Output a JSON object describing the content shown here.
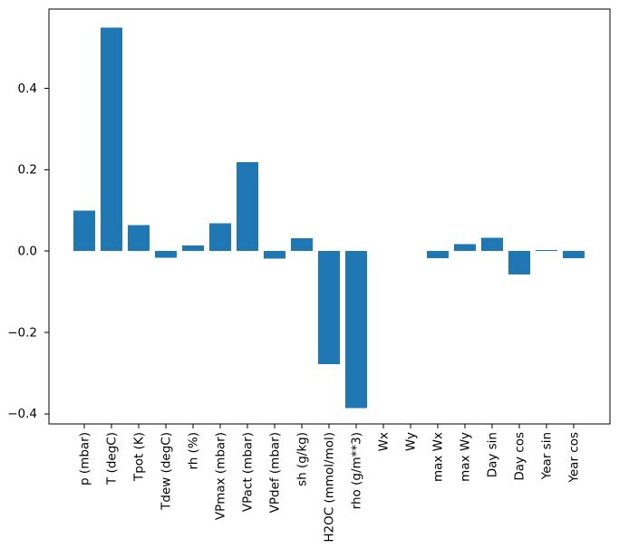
{
  "chart_data": {
    "type": "bar",
    "title": "",
    "xlabel": "",
    "ylabel": "",
    "categories": [
      "p (mbar)",
      "T (degC)",
      "Tpot (K)",
      "Tdew (degC)",
      "rh (%)",
      "VPmax (mbar)",
      "VPact (mbar)",
      "VPdef (mbar)",
      "sh (g/kg)",
      "H2OC (mmol/mol)",
      "rho (g/m**3)",
      "Wx",
      "Wy",
      "max Wx",
      "max Wy",
      "Day sin",
      "Day cos",
      "Year sin",
      "Year cos"
    ],
    "values": [
      0.099,
      0.549,
      0.064,
      -0.016,
      0.014,
      0.068,
      0.219,
      -0.019,
      0.032,
      -0.278,
      -0.386,
      0.0,
      0.0,
      -0.017,
      0.017,
      0.033,
      -0.058,
      0.002,
      -0.017
    ],
    "bar_color": "#1f77b4",
    "spine_color": "#000000",
    "background": "#ffffff",
    "ylim": [
      -0.425,
      0.595
    ],
    "yticks": [
      0.4,
      0.2,
      0.0,
      -0.2,
      -0.4
    ],
    "ytick_labels": [
      "0.4",
      "0.2",
      "0.0",
      "−0.2",
      "−0.4"
    ],
    "xtick_rotation": 90,
    "grid": false,
    "legend": null
  }
}
